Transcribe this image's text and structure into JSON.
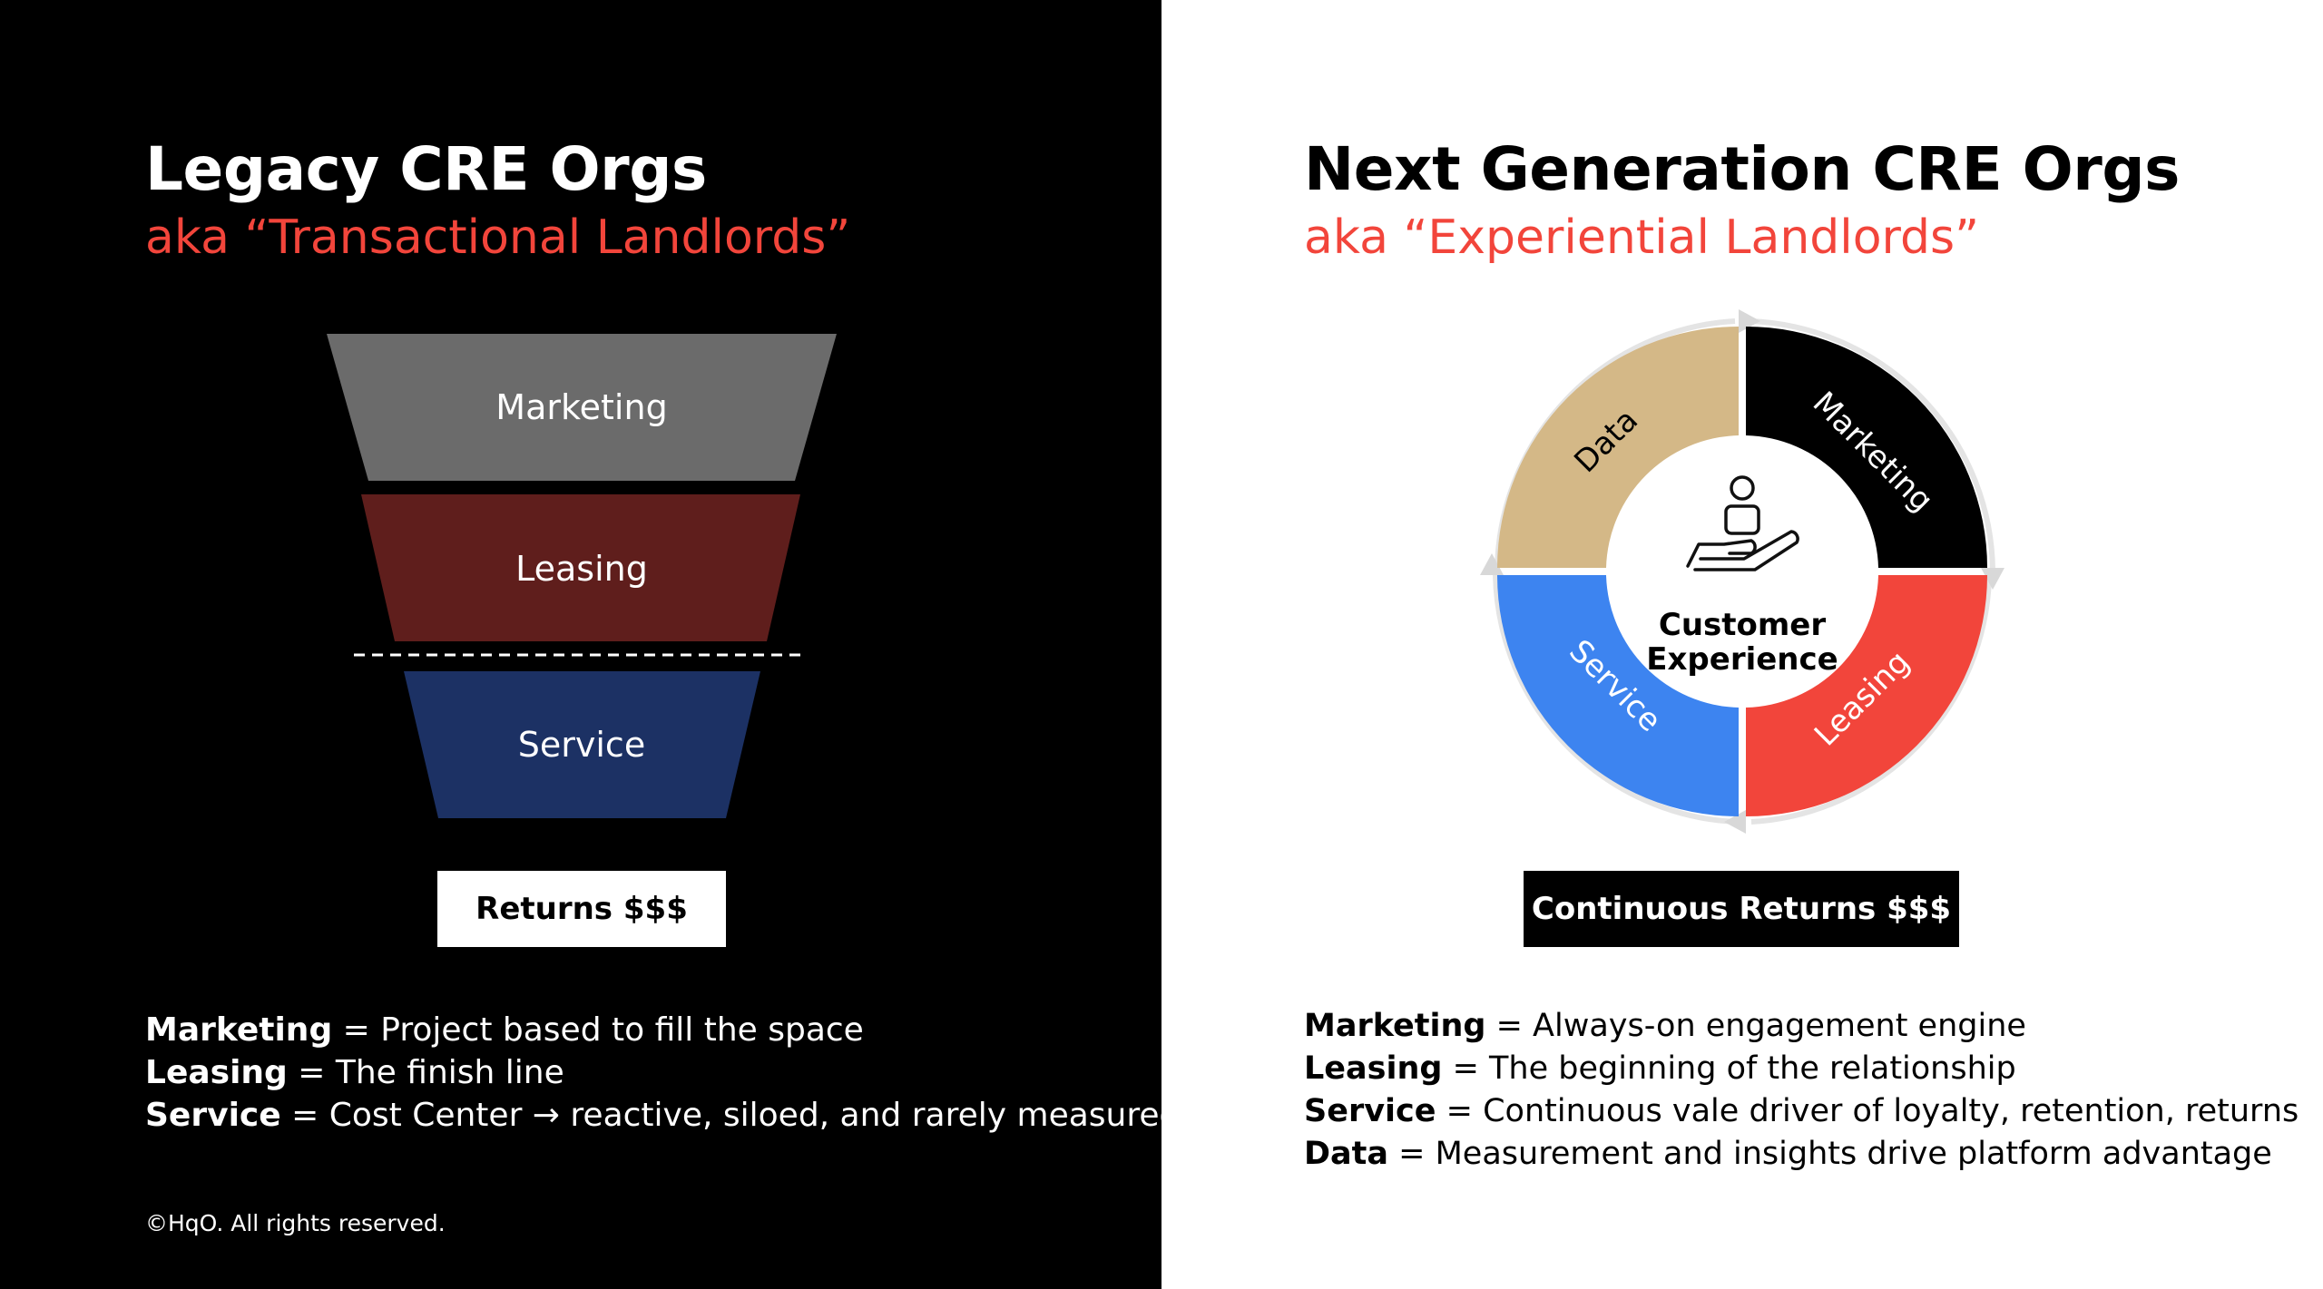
{
  "legacy": {
    "title": "Legacy CRE Orgs",
    "subtitle": "aka “Transactional Landlords”",
    "funnel": [
      {
        "label": "Marketing",
        "color": "#6b6b6b"
      },
      {
        "label": "Leasing",
        "color": "#5f1e1c"
      },
      {
        "label": "Service",
        "color": "#1c3164"
      }
    ],
    "returns_label": "Returns $$$",
    "definitions": [
      {
        "term": "Marketing",
        "text": " = Project based to fill the space"
      },
      {
        "term": "Leasing",
        "text": " = The finish line"
      },
      {
        "term": "Service",
        "text": " = Cost Center → reactive, siloed, and rarely measured"
      }
    ],
    "copyright": "©HqO. All rights reserved."
  },
  "nextgen": {
    "title": "Next Generation CRE Orgs",
    "subtitle": "aka “Experiential Landlords”",
    "cycle": {
      "center_line1": "Customer",
      "center_line2": "Experience",
      "segments": [
        {
          "label": "Data",
          "color": "#d4b887",
          "text_color": "#000000"
        },
        {
          "label": "Marketing",
          "color": "#000000",
          "text_color": "#ffffff"
        },
        {
          "label": "Leasing",
          "color": "#f2453b",
          "text_color": "#ffffff"
        },
        {
          "label": "Service",
          "color": "#3d84f0",
          "text_color": "#ffffff"
        }
      ]
    },
    "returns_label": "Continuous Returns $$$",
    "definitions": [
      {
        "term": "Marketing",
        "text": " = Always-on engagement engine"
      },
      {
        "term": "Leasing",
        "text": " = The beginning of the relationship"
      },
      {
        "term": "Service",
        "text": " = Continuous vale driver of loyalty, retention, returns"
      },
      {
        "term": "Data",
        "text": " = Measurement and insights drive platform advantage"
      }
    ]
  }
}
